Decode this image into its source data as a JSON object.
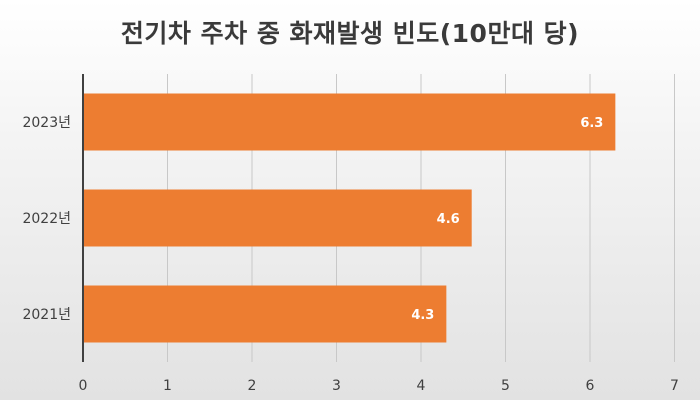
{
  "chart_data": {
    "type": "bar",
    "orientation": "horizontal",
    "title": "전기차 주차 중 화재발생 빈도(10만대 당)",
    "categories": [
      "2023년",
      "2022년",
      "2021년"
    ],
    "values": [
      6.3,
      4.6,
      4.3
    ],
    "data_labels": [
      "6.3",
      "4.6",
      "4.3"
    ],
    "xlim": [
      0,
      7
    ],
    "x_ticks": [
      "0",
      "1",
      "2",
      "3",
      "4",
      "5",
      "6",
      "7"
    ],
    "grid": "vertical",
    "legend": "none",
    "colors": {
      "bar": "#ED7D31",
      "grid": "#c8c8c8",
      "axis": "#404040",
      "label_text": "#ffffff",
      "tick_text": "#404040"
    }
  }
}
